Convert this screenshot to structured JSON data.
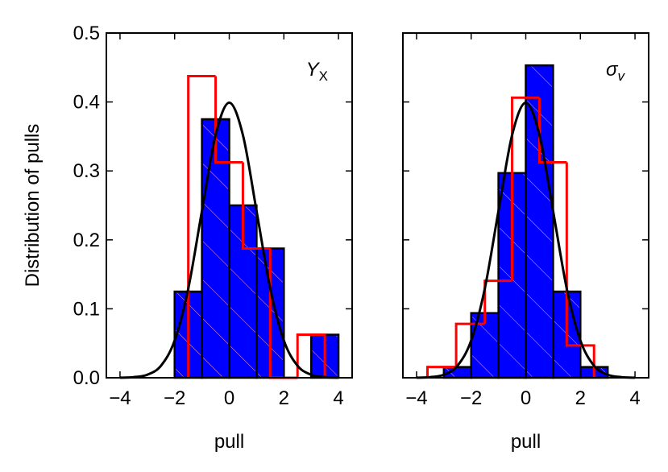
{
  "chart_data": [
    {
      "type": "histogram",
      "xlabel": "pull",
      "ylabel": "Distribution of pulls",
      "annotation": "Y",
      "annotation_sub": "X",
      "xlim": [
        -4.5,
        4.5
      ],
      "ylim": [
        0,
        0.5
      ],
      "xticks": [
        {
          "value": -4,
          "label": "−4"
        },
        {
          "value": -2,
          "label": "−2"
        },
        0,
        2,
        4
      ],
      "yticks": [
        {
          "value": 0,
          "label": "0.0"
        },
        0.1,
        0.2,
        0.3,
        0.4,
        0.5
      ],
      "ytick_labels": true,
      "histograms": [
        {
          "color": "#0000ff",
          "filled": true,
          "bins": [
            -2,
            -1,
            0,
            1,
            2,
            3,
            4
          ],
          "counts": [
            0.125,
            0.375,
            0.25,
            0.1875,
            0,
            0.0625
          ]
        },
        {
          "color": "#ff0000",
          "filled": false,
          "bins": [
            -1.5,
            -0.5,
            0.5,
            1.5,
            2.5,
            3.5
          ],
          "counts": [
            0.4375,
            0.3125,
            0.1875,
            0,
            0.0625
          ]
        }
      ],
      "curve": {
        "color": "#000000",
        "x": [
          -4,
          -3.5,
          -3,
          -2.5,
          -2,
          -1.5,
          -1,
          -0.5,
          0,
          0.5,
          1,
          1.5,
          2,
          2.5,
          3,
          3.5,
          4
        ],
        "y": [
          0.0001,
          0.0009,
          0.0044,
          0.0175,
          0.054,
          0.1295,
          0.242,
          0.3521,
          0.3989,
          0.3521,
          0.242,
          0.1295,
          0.054,
          0.0175,
          0.0044,
          0.0009,
          0.0001
        ]
      }
    },
    {
      "type": "histogram",
      "xlabel": "pull",
      "annotation": "σ",
      "annotation_sub": "v",
      "xlim": [
        -4.5,
        4.5
      ],
      "ylim": [
        0,
        0.5
      ],
      "xticks": [
        {
          "value": -4,
          "label": "−4"
        },
        {
          "value": -2,
          "label": "−2"
        },
        0,
        2,
        4
      ],
      "yticks": [
        0,
        0.1,
        0.2,
        0.3,
        0.4,
        0.5
      ],
      "ytick_labels": false,
      "histograms": [
        {
          "color": "#0000ff",
          "filled": true,
          "bins": [
            -3,
            -2,
            -1,
            0,
            1,
            2,
            3
          ],
          "counts": [
            0.0156,
            0.0938,
            0.2969,
            0.4531,
            0.125,
            0.0156
          ]
        },
        {
          "color": "#ff0000",
          "filled": false,
          "bins": [
            -3.6,
            -2.55,
            -1.5,
            -0.5,
            0.5,
            1.5,
            2.5
          ],
          "counts": [
            0.0156,
            0.0781,
            0.1406,
            0.4063,
            0.3125,
            0.0469
          ]
        }
      ],
      "curve": {
        "color": "#000000",
        "x": [
          -4,
          -3.5,
          -3,
          -2.5,
          -2,
          -1.5,
          -1,
          -0.5,
          0,
          0.5,
          1,
          1.5,
          2,
          2.5,
          3,
          3.5,
          4
        ],
        "y": [
          0.0001,
          0.0009,
          0.0044,
          0.0175,
          0.054,
          0.1295,
          0.242,
          0.3521,
          0.3989,
          0.3521,
          0.242,
          0.1295,
          0.054,
          0.0175,
          0.0044,
          0.0009,
          0.0001
        ]
      }
    }
  ]
}
